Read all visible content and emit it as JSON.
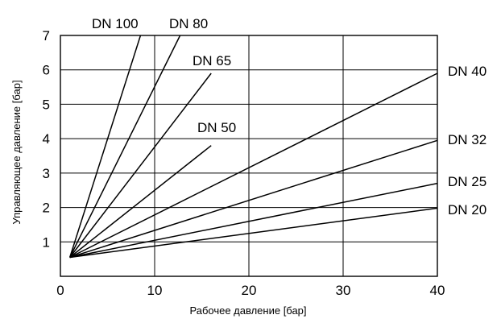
{
  "chart_data": {
    "type": "line",
    "xlabel": "Рабочее давление [бар]",
    "ylabel": "Управляющее давление [бар]",
    "xlim": [
      0,
      40
    ],
    "ylim": [
      0,
      7
    ],
    "x_ticks": [
      0,
      10,
      20,
      30,
      40
    ],
    "y_ticks": [
      1,
      2,
      3,
      4,
      5,
      6,
      7
    ],
    "grid": true,
    "series": [
      {
        "name": "DN 100",
        "x": [
          1,
          8.5
        ],
        "y": [
          0.55,
          7.0
        ]
      },
      {
        "name": "DN 80",
        "x": [
          1,
          12.7
        ],
        "y": [
          0.55,
          7.0
        ]
      },
      {
        "name": "DN 65",
        "x": [
          1,
          16
        ],
        "y": [
          0.55,
          5.9
        ]
      },
      {
        "name": "DN 50",
        "x": [
          1,
          16
        ],
        "y": [
          0.55,
          3.8
        ]
      },
      {
        "name": "DN 40",
        "x": [
          1,
          40
        ],
        "y": [
          0.55,
          5.9
        ]
      },
      {
        "name": "DN 32",
        "x": [
          1,
          40
        ],
        "y": [
          0.55,
          3.95
        ]
      },
      {
        "name": "DN 25",
        "x": [
          1,
          40
        ],
        "y": [
          0.55,
          2.7
        ]
      },
      {
        "name": "DN 20",
        "x": [
          1,
          40
        ],
        "y": [
          0.55,
          1.98
        ]
      }
    ]
  }
}
